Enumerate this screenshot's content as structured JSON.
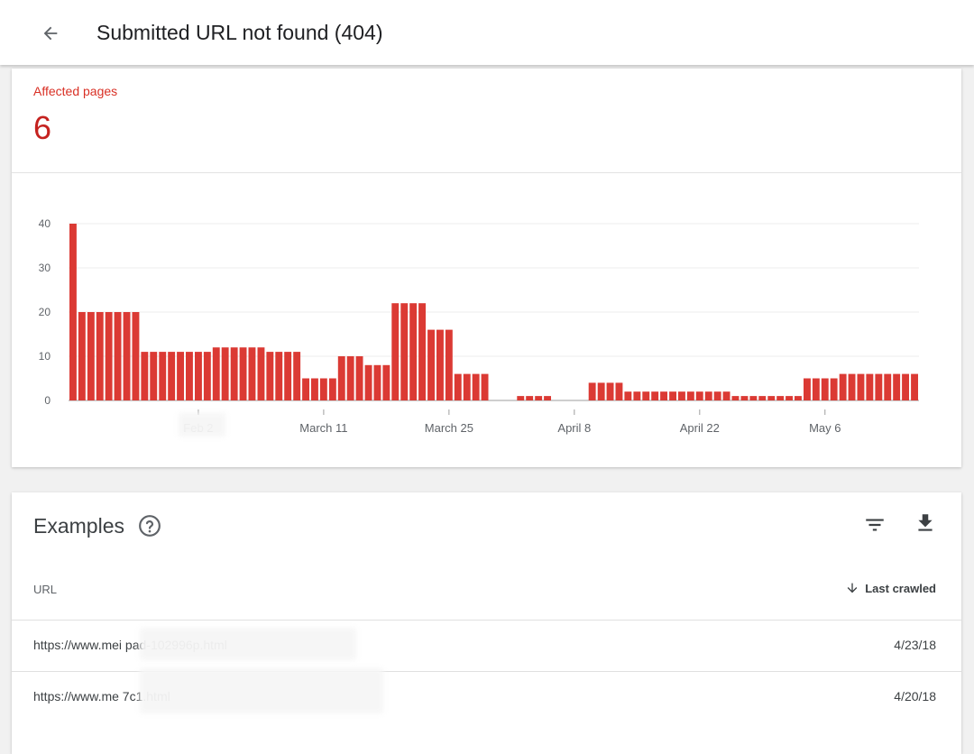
{
  "header": {
    "title": "Submitted URL not found (404)",
    "back_icon": "arrow-back-icon"
  },
  "summary": {
    "label": "Affected pages",
    "count": "6",
    "accent": "#db3a34"
  },
  "chart_data": {
    "type": "bar",
    "values": [
      40,
      20,
      20,
      20,
      20,
      20,
      20,
      20,
      11,
      11,
      11,
      11,
      11,
      11,
      11,
      11,
      12,
      12,
      12,
      12,
      12,
      12,
      11,
      11,
      11,
      11,
      5,
      5,
      5,
      5,
      10,
      10,
      10,
      8,
      8,
      8,
      22,
      22,
      22,
      22,
      16,
      16,
      16,
      6,
      6,
      6,
      6,
      0,
      0,
      0,
      1,
      1,
      1,
      1,
      0,
      0,
      0,
      0,
      4,
      4,
      4,
      4,
      2,
      2,
      2,
      2,
      2,
      2,
      2,
      2,
      2,
      2,
      2,
      2,
      1,
      1,
      1,
      1,
      1,
      1,
      1,
      1,
      5,
      5,
      5,
      5,
      6,
      6,
      6,
      6,
      6,
      6,
      6,
      6,
      6
    ],
    "x_tick_labels": [
      "Feb 2",
      "March 11",
      "March 25",
      "April 8",
      "April 22",
      "May 6"
    ],
    "y_ticks": [
      0,
      10,
      20,
      30,
      40
    ],
    "ylim": [
      0,
      40
    ],
    "grid": true,
    "bar_color": "#db3a34"
  },
  "examples": {
    "title": "Examples",
    "columns": {
      "url": "URL",
      "last_crawled": "Last crawled"
    },
    "rows": [
      {
        "url": "https://www.mei                         pad-102996p.html",
        "date": "4/23/18"
      },
      {
        "url": "https://www.me                                     7c1.html",
        "date": "4/20/18"
      }
    ]
  }
}
